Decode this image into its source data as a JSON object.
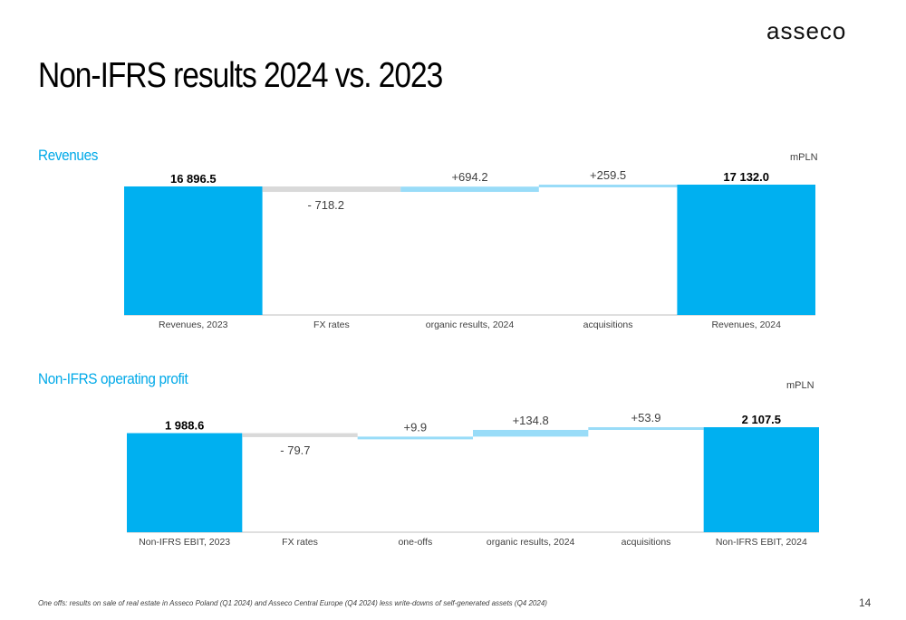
{
  "logo_text": "asseco",
  "title": "Non-IFRS results 2024 vs. 2023",
  "footnote": "One offs: results on sale of real estate in Asseco Poland (Q1 2024) and Asseco Central Europe (Q4 2024) less write-downs of self-generated assets (Q4 2024)",
  "page_number": "14",
  "colors": {
    "total": "#00b0f0",
    "increase": "#99dcf8",
    "decrease": "#d9d9d9",
    "title_accent": "#00a9e8"
  },
  "sections": [
    {
      "title": "Revenues",
      "unit": "mPLN"
    },
    {
      "title": "Non-IFRS operating profit",
      "unit": "mPLN"
    }
  ],
  "chart_data": [
    {
      "type": "waterfall",
      "title": "Revenues",
      "unit": "mPLN",
      "categories": [
        "Revenues, 2023",
        "FX rates",
        "organic results, 2024",
        "acquisitions",
        "Revenues, 2024"
      ],
      "values": [
        16896.5,
        -718.2,
        694.2,
        259.5,
        17132.0
      ],
      "kinds": [
        "total",
        "decrease",
        "increase",
        "increase",
        "total"
      ],
      "labels": [
        "16 896.5",
        "- 718.2",
        "+694.2",
        "+259.5",
        "17 132.0"
      ]
    },
    {
      "type": "waterfall",
      "title": "Non-IFRS operating profit",
      "unit": "mPLN",
      "categories": [
        "Non-IFRS EBIT, 2023",
        "FX rates",
        "one-offs",
        "organic results, 2024",
        "acquisitions",
        "Non-IFRS EBIT, 2024"
      ],
      "values": [
        1988.6,
        -79.7,
        9.9,
        134.8,
        53.9,
        2107.5
      ],
      "kinds": [
        "total",
        "decrease",
        "increase",
        "increase",
        "increase",
        "total"
      ],
      "labels": [
        "1 988.6",
        "- 79.7",
        "+9.9",
        "+134.8",
        "+53.9",
        "2 107.5"
      ]
    }
  ]
}
